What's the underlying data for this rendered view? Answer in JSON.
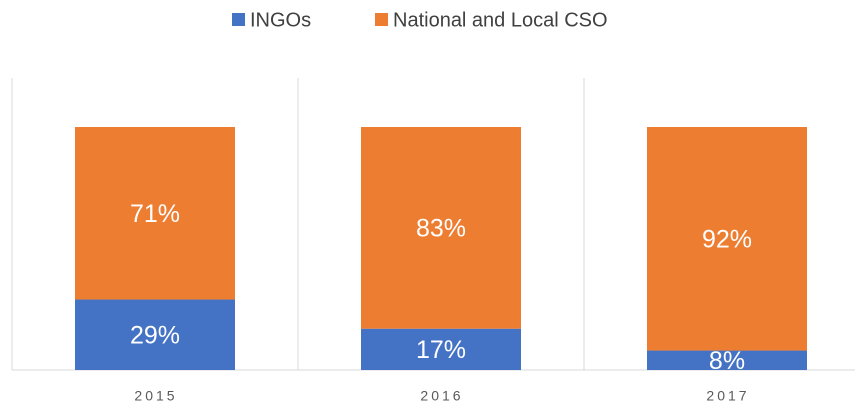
{
  "chart_data": {
    "type": "stacked_bar",
    "categories": [
      "2015",
      "2016",
      "2017"
    ],
    "series": [
      {
        "name": "INGOs",
        "color": "#4472c4",
        "values": [
          29,
          17,
          8
        ],
        "value_labels": [
          "29%",
          "17%",
          "8%"
        ]
      },
      {
        "name": "National and Local CSO",
        "color": "#ed7d31",
        "values": [
          71,
          83,
          92
        ],
        "value_labels": [
          "71%",
          "83%",
          "92%"
        ]
      }
    ],
    "ylim": [
      0,
      100
    ]
  }
}
